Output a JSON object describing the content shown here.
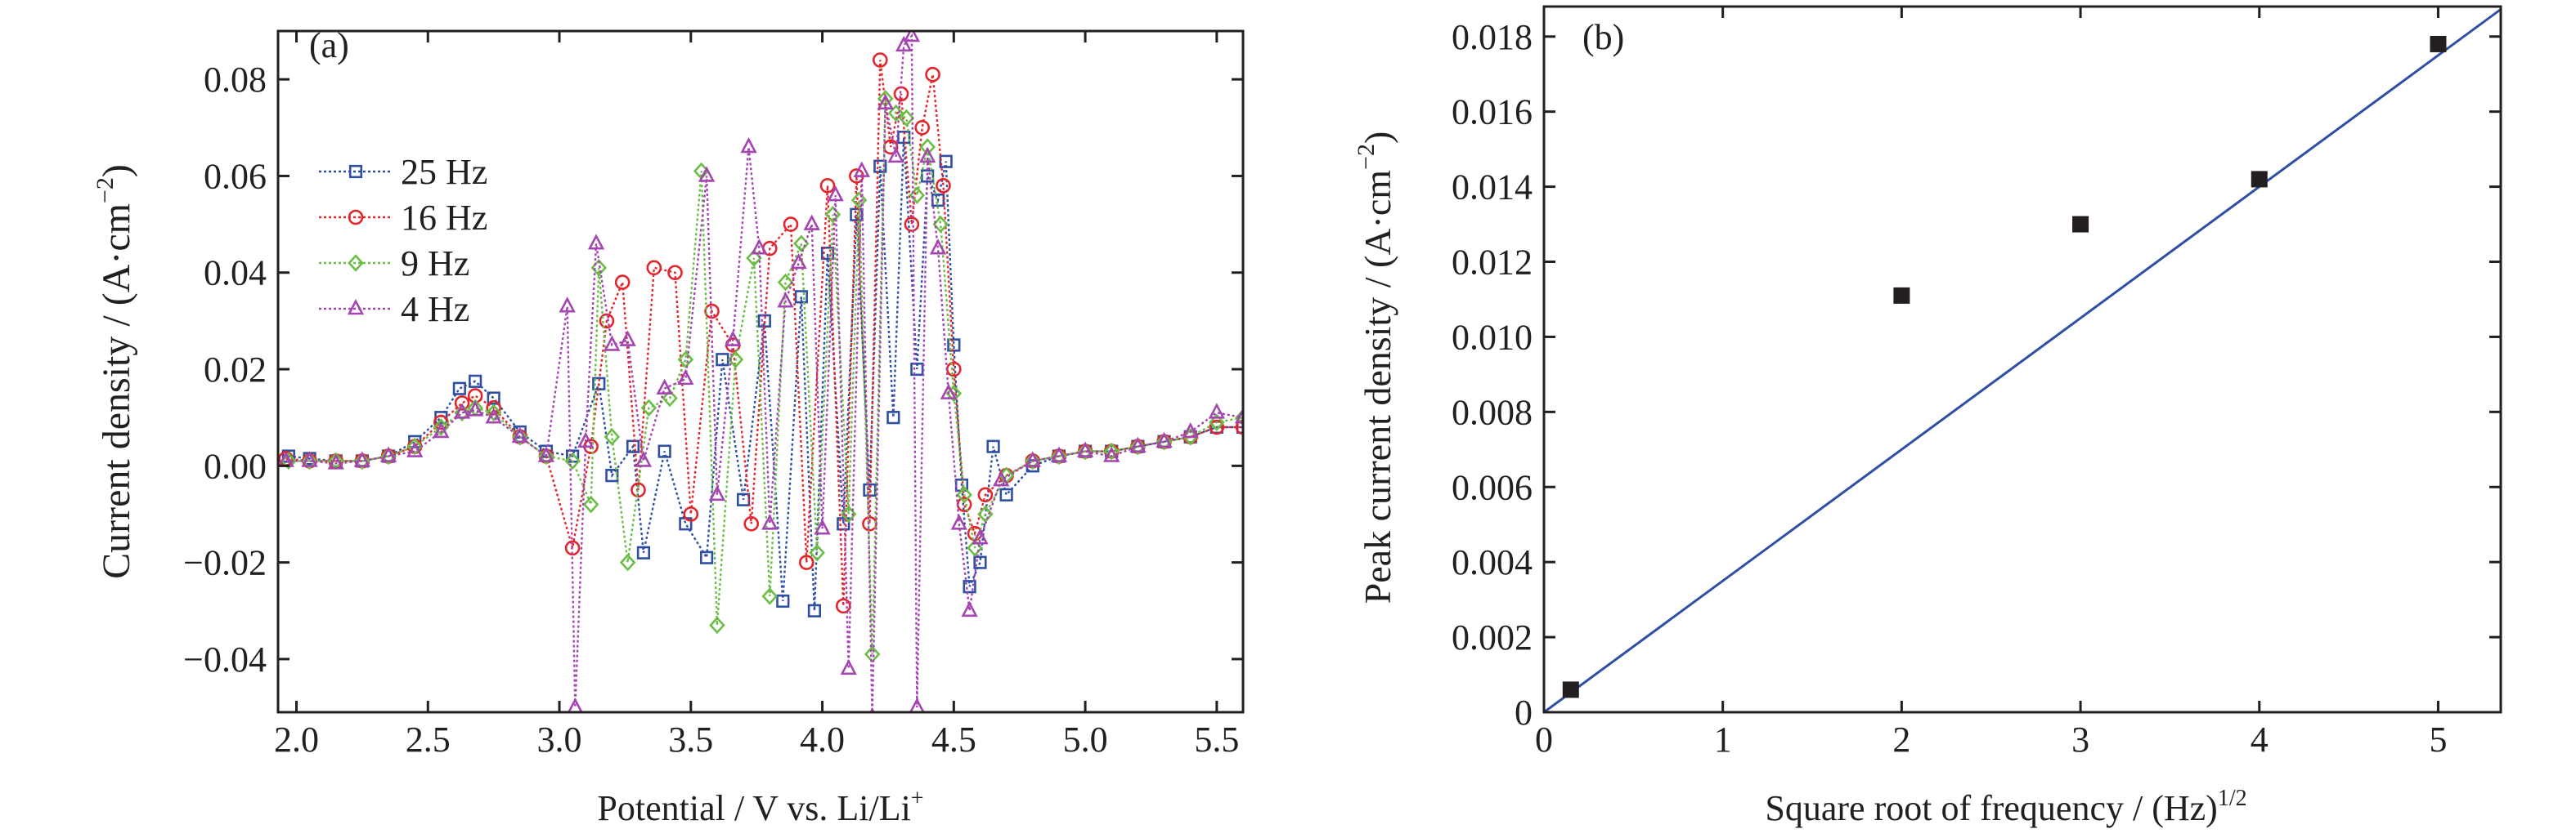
{
  "chart_data": [
    {
      "panel": "(a)",
      "type": "line",
      "xlabel": "Potential / V vs. Li/Li",
      "xlabel_sup": "+",
      "ylabel": "Current density / (A·cm",
      "ylabel_sup": "−2",
      "ylabel_tail": ")",
      "xlim": [
        1.93,
        5.6
      ],
      "ylim": [
        -0.051,
        0.09
      ],
      "xticks": [
        2.0,
        2.5,
        3.0,
        3.5,
        4.0,
        4.5,
        5.0,
        5.5
      ],
      "xtick_labels": [
        "2.0",
        "2.5",
        "3.0",
        "3.5",
        "4.0",
        "4.5",
        "5.0",
        "5.5"
      ],
      "yticks": [
        -0.04,
        -0.02,
        0.0,
        0.02,
        0.04,
        0.06,
        0.08
      ],
      "ytick_labels": [
        "−0.04",
        "−0.02",
        "0.00",
        "0.02",
        "0.04",
        "0.06",
        "0.08"
      ],
      "legend_position": "upper-left",
      "series": [
        {
          "name": "25 Hz",
          "color": "#2e4fa3",
          "marker": "square",
          "points": [
            [
              1.97,
              0.002
            ],
            [
              2.05,
              0.0015
            ],
            [
              2.15,
              0.001
            ],
            [
              2.25,
              0.001
            ],
            [
              2.35,
              0.002
            ],
            [
              2.45,
              0.005
            ],
            [
              2.55,
              0.01
            ],
            [
              2.62,
              0.016
            ],
            [
              2.68,
              0.0175
            ],
            [
              2.75,
              0.014
            ],
            [
              2.85,
              0.007
            ],
            [
              2.95,
              0.003
            ],
            [
              3.05,
              0.002
            ],
            [
              3.15,
              0.017
            ],
            [
              3.2,
              -0.002
            ],
            [
              3.28,
              0.004
            ],
            [
              3.32,
              -0.018
            ],
            [
              3.4,
              0.003
            ],
            [
              3.48,
              -0.012
            ],
            [
              3.56,
              -0.019
            ],
            [
              3.62,
              0.022
            ],
            [
              3.7,
              -0.007
            ],
            [
              3.78,
              0.03
            ],
            [
              3.85,
              -0.028
            ],
            [
              3.92,
              0.035
            ],
            [
              3.97,
              -0.03
            ],
            [
              4.02,
              0.044
            ],
            [
              4.08,
              -0.012
            ],
            [
              4.13,
              0.052
            ],
            [
              4.18,
              -0.005
            ],
            [
              4.22,
              0.062
            ],
            [
              4.27,
              0.01
            ],
            [
              4.31,
              0.068
            ],
            [
              4.36,
              0.02
            ],
            [
              4.4,
              0.06
            ],
            [
              4.44,
              0.055
            ],
            [
              4.47,
              0.063
            ],
            [
              4.5,
              0.025
            ],
            [
              4.53,
              -0.004
            ],
            [
              4.56,
              -0.025
            ],
            [
              4.6,
              -0.02
            ],
            [
              4.65,
              0.004
            ],
            [
              4.7,
              -0.006
            ],
            [
              4.8,
              0.0
            ],
            [
              4.9,
              0.002
            ],
            [
              5.0,
              0.003
            ],
            [
              5.1,
              0.003
            ],
            [
              5.2,
              0.004
            ],
            [
              5.3,
              0.005
            ],
            [
              5.4,
              0.006
            ],
            [
              5.5,
              0.008
            ],
            [
              5.6,
              0.008
            ]
          ]
        },
        {
          "name": "16 Hz",
          "color": "#e3262b",
          "marker": "circle",
          "points": [
            [
              1.96,
              0.0015
            ],
            [
              2.05,
              0.001
            ],
            [
              2.15,
              0.001
            ],
            [
              2.25,
              0.001
            ],
            [
              2.35,
              0.002
            ],
            [
              2.45,
              0.004
            ],
            [
              2.55,
              0.009
            ],
            [
              2.63,
              0.013
            ],
            [
              2.68,
              0.0145
            ],
            [
              2.75,
              0.012
            ],
            [
              2.85,
              0.006
            ],
            [
              2.95,
              0.002
            ],
            [
              3.05,
              -0.017
            ],
            [
              3.12,
              0.004
            ],
            [
              3.18,
              0.03
            ],
            [
              3.24,
              0.038
            ],
            [
              3.3,
              -0.005
            ],
            [
              3.36,
              0.041
            ],
            [
              3.44,
              0.04
            ],
            [
              3.5,
              -0.01
            ],
            [
              3.58,
              0.032
            ],
            [
              3.66,
              0.025
            ],
            [
              3.73,
              -0.012
            ],
            [
              3.8,
              0.045
            ],
            [
              3.88,
              0.05
            ],
            [
              3.94,
              -0.02
            ],
            [
              4.02,
              0.058
            ],
            [
              4.08,
              -0.029
            ],
            [
              4.13,
              0.06
            ],
            [
              4.18,
              -0.012
            ],
            [
              4.22,
              0.084
            ],
            [
              4.26,
              0.066
            ],
            [
              4.3,
              0.077
            ],
            [
              4.34,
              0.05
            ],
            [
              4.38,
              0.07
            ],
            [
              4.42,
              0.081
            ],
            [
              4.46,
              0.058
            ],
            [
              4.5,
              0.02
            ],
            [
              4.54,
              -0.008
            ],
            [
              4.58,
              -0.014
            ],
            [
              4.62,
              -0.006
            ],
            [
              4.7,
              -0.002
            ],
            [
              4.8,
              0.001
            ],
            [
              4.9,
              0.002
            ],
            [
              5.0,
              0.003
            ],
            [
              5.1,
              0.003
            ],
            [
              5.2,
              0.004
            ],
            [
              5.3,
              0.005
            ],
            [
              5.4,
              0.006
            ],
            [
              5.5,
              0.008
            ],
            [
              5.6,
              0.008
            ]
          ]
        },
        {
          "name": "9 Hz",
          "color": "#6bbd45",
          "marker": "diamond",
          "points": [
            [
              1.97,
              0.001
            ],
            [
              2.05,
              0.001
            ],
            [
              2.15,
              0.001
            ],
            [
              2.25,
              0.001
            ],
            [
              2.35,
              0.002
            ],
            [
              2.45,
              0.004
            ],
            [
              2.55,
              0.008
            ],
            [
              2.63,
              0.011
            ],
            [
              2.68,
              0.012
            ],
            [
              2.75,
              0.011
            ],
            [
              2.85,
              0.006
            ],
            [
              2.95,
              0.002
            ],
            [
              3.05,
              0.001
            ],
            [
              3.12,
              -0.008
            ],
            [
              3.15,
              0.041
            ],
            [
              3.2,
              0.006
            ],
            [
              3.26,
              -0.02
            ],
            [
              3.34,
              0.012
            ],
            [
              3.42,
              0.014
            ],
            [
              3.48,
              0.022
            ],
            [
              3.54,
              0.061
            ],
            [
              3.6,
              -0.033
            ],
            [
              3.67,
              0.022
            ],
            [
              3.74,
              0.043
            ],
            [
              3.8,
              -0.027
            ],
            [
              3.86,
              0.038
            ],
            [
              3.92,
              0.046
            ],
            [
              3.98,
              -0.018
            ],
            [
              4.04,
              0.052
            ],
            [
              4.1,
              -0.01
            ],
            [
              4.14,
              0.055
            ],
            [
              4.19,
              -0.039
            ],
            [
              4.24,
              0.076
            ],
            [
              4.28,
              0.073
            ],
            [
              4.32,
              0.072
            ],
            [
              4.36,
              0.056
            ],
            [
              4.4,
              0.066
            ],
            [
              4.45,
              0.05
            ],
            [
              4.5,
              0.015
            ],
            [
              4.54,
              -0.006
            ],
            [
              4.58,
              -0.017
            ],
            [
              4.62,
              -0.01
            ],
            [
              4.7,
              -0.002
            ],
            [
              4.8,
              0.001
            ],
            [
              4.9,
              0.002
            ],
            [
              5.0,
              0.003
            ],
            [
              5.1,
              0.003
            ],
            [
              5.2,
              0.004
            ],
            [
              5.3,
              0.005
            ],
            [
              5.4,
              0.006
            ],
            [
              5.5,
              0.009
            ],
            [
              5.6,
              0.01
            ]
          ]
        },
        {
          "name": "4 Hz",
          "color": "#a445b2",
          "marker": "triangle",
          "points": [
            [
              1.96,
              0.001
            ],
            [
              2.05,
              0.001
            ],
            [
              2.15,
              0.0005
            ],
            [
              2.25,
              0.001
            ],
            [
              2.35,
              0.002
            ],
            [
              2.45,
              0.003
            ],
            [
              2.55,
              0.007
            ],
            [
              2.63,
              0.011
            ],
            [
              2.68,
              0.0115
            ],
            [
              2.75,
              0.01
            ],
            [
              2.85,
              0.006
            ],
            [
              2.95,
              0.002
            ],
            [
              3.03,
              0.033
            ],
            [
              3.06,
              -0.05
            ],
            [
              3.1,
              0.005
            ],
            [
              3.14,
              0.046
            ],
            [
              3.2,
              0.025
            ],
            [
              3.26,
              0.026
            ],
            [
              3.32,
              0.001
            ],
            [
              3.4,
              0.016
            ],
            [
              3.48,
              0.018
            ],
            [
              3.56,
              0.06
            ],
            [
              3.6,
              -0.006
            ],
            [
              3.66,
              0.026
            ],
            [
              3.72,
              0.066
            ],
            [
              3.76,
              0.045
            ],
            [
              3.8,
              -0.012
            ],
            [
              3.86,
              0.034
            ],
            [
              3.91,
              0.042
            ],
            [
              3.96,
              0.05
            ],
            [
              4.0,
              -0.013
            ],
            [
              4.05,
              0.056
            ],
            [
              4.1,
              -0.042
            ],
            [
              4.15,
              0.061
            ],
            [
              4.19,
              -0.052
            ],
            [
              4.24,
              0.075
            ],
            [
              4.28,
              0.064
            ],
            [
              4.31,
              0.087
            ],
            [
              4.34,
              0.089
            ],
            [
              4.36,
              -0.05
            ],
            [
              4.4,
              0.064
            ],
            [
              4.44,
              0.045
            ],
            [
              4.48,
              0.015
            ],
            [
              4.52,
              -0.012
            ],
            [
              4.56,
              -0.03
            ],
            [
              4.6,
              -0.015
            ],
            [
              4.68,
              -0.003
            ],
            [
              4.8,
              0.001
            ],
            [
              4.9,
              0.002
            ],
            [
              5.0,
              0.003
            ],
            [
              5.1,
              0.002
            ],
            [
              5.2,
              0.004
            ],
            [
              5.3,
              0.005
            ],
            [
              5.4,
              0.007
            ],
            [
              5.5,
              0.011
            ],
            [
              5.6,
              0.01
            ]
          ]
        }
      ]
    },
    {
      "panel": "(b)",
      "type": "scatter",
      "xlabel": "Square root of frequency / (Hz)",
      "xlabel_sup": "1/2",
      "ylabel": "Peak current density / (A·cm",
      "ylabel_sup": "−2",
      "ylabel_tail": ")",
      "xlim": [
        0,
        5.35
      ],
      "ylim": [
        0,
        0.0188
      ],
      "xticks": [
        0,
        1,
        2,
        3,
        4,
        5
      ],
      "xtick_labels": [
        "0",
        "1",
        "2",
        "3",
        "4",
        "5"
      ],
      "yticks": [
        0,
        0.002,
        0.004,
        0.006,
        0.008,
        0.01,
        0.012,
        0.014,
        0.016,
        0.018
      ],
      "ytick_labels": [
        "0",
        "0.002",
        "0.004",
        "0.006",
        "0.008",
        "0.010",
        "0.012",
        "0.014",
        "0.016",
        "0.018"
      ],
      "marker_color": "#231f20",
      "points": [
        [
          0.15,
          0.0006
        ],
        [
          2,
          0.0111
        ],
        [
          3,
          0.013
        ],
        [
          4,
          0.0142
        ],
        [
          5,
          0.0178
        ]
      ],
      "fit_line": {
        "color": "#2e4fa3",
        "slope": 0.0035,
        "intercept": 0.0
      }
    }
  ]
}
